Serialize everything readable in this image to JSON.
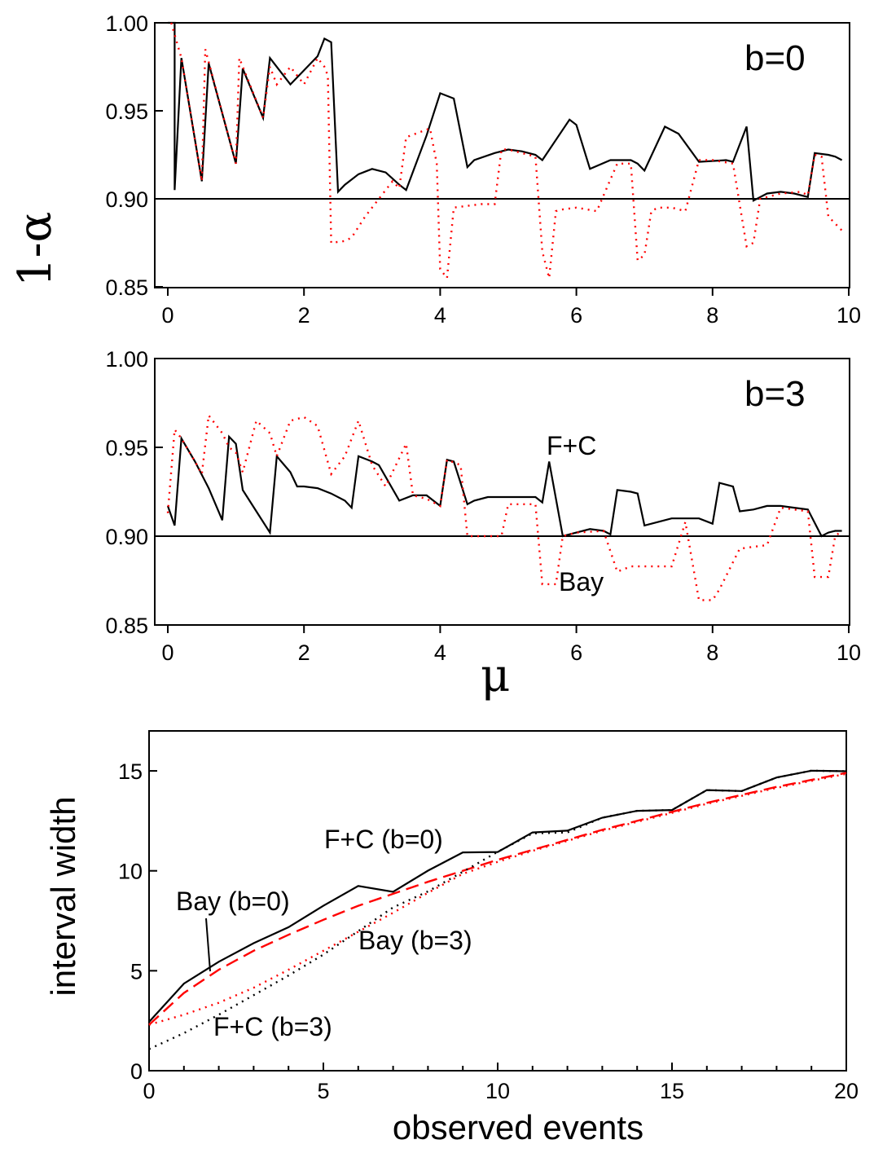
{
  "chart_data": [
    {
      "type": "line",
      "panel": "top",
      "ylabel": "1-α",
      "xlim": [
        0,
        10
      ],
      "ylim": [
        0.85,
        1.0
      ],
      "xticks": [
        0,
        2,
        4,
        6,
        8,
        10
      ],
      "yticks": [
        0.85,
        0.9,
        0.95,
        1.0
      ],
      "xtick_labels": [
        "0",
        "2",
        "4",
        "6",
        "8",
        "10"
      ],
      "ytick_labels": [
        "0.85",
        "0.90",
        "0.95",
        "1.00"
      ],
      "annotations": [
        "b=0"
      ],
      "reference_line": 0.9,
      "grid": false,
      "series": [
        {
          "color": "#000000",
          "style": "solid",
          "x": [
            0,
            0.1,
            0.1,
            0.2,
            0.5,
            0.5,
            0.6,
            1.0,
            1.0,
            1.1,
            1.4,
            1.4,
            1.5,
            1.8,
            1.8,
            2.2,
            2.2,
            2.3,
            2.4,
            2.5,
            2.6,
            2.8,
            3.0,
            3.2,
            3.4,
            3.5,
            3.5,
            3.8,
            3.8,
            4.0,
            4.2,
            4.2,
            4.4,
            4.5,
            4.8,
            5.0,
            5.2,
            5.4,
            5.5,
            5.5,
            5.9,
            6.0,
            6.2,
            6.5,
            6.8,
            6.9,
            7.0,
            7.0,
            7.3,
            7.5,
            7.5,
            7.8,
            8.2,
            8.3,
            8.5,
            8.6,
            8.6,
            8.8,
            9.0,
            9.2,
            9.4,
            9.5,
            9.5,
            9.7,
            9.8,
            9.9
          ],
          "y": [
            1.0,
            1.0,
            0.905,
            0.98,
            0.91,
            0.91,
            0.977,
            0.92,
            0.92,
            0.974,
            0.946,
            0.946,
            0.98,
            0.965,
            0.965,
            0.981,
            0.981,
            0.991,
            0.989,
            0.904,
            0.908,
            0.914,
            0.917,
            0.915,
            0.908,
            0.905,
            0.905,
            0.936,
            0.936,
            0.96,
            0.957,
            0.957,
            0.918,
            0.922,
            0.926,
            0.928,
            0.927,
            0.925,
            0.922,
            0.922,
            0.945,
            0.942,
            0.917,
            0.922,
            0.922,
            0.92,
            0.916,
            0.916,
            0.941,
            0.937,
            0.937,
            0.921,
            0.922,
            0.921,
            0.941,
            0.899,
            0.899,
            0.903,
            0.904,
            0.903,
            0.901,
            0.926,
            0.926,
            0.925,
            0.924,
            0.922
          ]
        },
        {
          "color": "#ff0000",
          "style": "dotted",
          "x": [
            0.05,
            0.2,
            0.5,
            0.55,
            1.0,
            1.05,
            1.4,
            1.5,
            1.6,
            1.8,
            2.0,
            2.2,
            2.3,
            2.35,
            2.4,
            2.6,
            2.7,
            2.9,
            3.3,
            3.4,
            3.5,
            3.5,
            3.85,
            3.95,
            4.0,
            4.1,
            4.2,
            4.4,
            4.6,
            4.8,
            4.9,
            5.0,
            5.2,
            5.4,
            5.5,
            5.6,
            5.7,
            5.8,
            6.0,
            6.3,
            6.6,
            6.8,
            6.9,
            7.0,
            7.1,
            7.2,
            7.4,
            7.6,
            7.8,
            8.0,
            8.3,
            8.5,
            8.5,
            8.6,
            8.7,
            9.0,
            9.3,
            9.4,
            9.5,
            9.6,
            9.7,
            9.9
          ],
          "y": [
            1.0,
            0.98,
            0.91,
            0.985,
            0.92,
            0.98,
            0.946,
            0.975,
            0.965,
            0.975,
            0.965,
            0.98,
            0.975,
            0.97,
            0.875,
            0.876,
            0.878,
            0.89,
            0.91,
            0.906,
            0.935,
            0.935,
            0.94,
            0.92,
            0.86,
            0.855,
            0.895,
            0.896,
            0.897,
            0.897,
            0.928,
            0.928,
            0.926,
            0.924,
            0.87,
            0.855,
            0.893,
            0.894,
            0.895,
            0.893,
            0.92,
            0.92,
            0.865,
            0.868,
            0.893,
            0.895,
            0.895,
            0.893,
            0.922,
            0.922,
            0.92,
            0.873,
            0.873,
            0.875,
            0.9,
            0.903,
            0.904,
            0.902,
            0.925,
            0.924,
            0.89,
            0.882
          ]
        }
      ]
    },
    {
      "type": "line",
      "panel": "middle",
      "xlabel": "μ",
      "xlim": [
        0,
        10
      ],
      "ylim": [
        0.85,
        1.0
      ],
      "xticks": [
        0,
        2,
        4,
        6,
        8,
        10
      ],
      "yticks": [
        0.85,
        0.9,
        0.95,
        1.0
      ],
      "xtick_labels": [
        "0",
        "2",
        "4",
        "6",
        "8",
        "10"
      ],
      "ytick_labels": [
        "0.85",
        "0.90",
        "0.95",
        "1.00"
      ],
      "annotations": [
        "b=3",
        "F+C",
        "Bay"
      ],
      "reference_line": 0.9,
      "grid": false,
      "series": [
        {
          "color": "#000000",
          "style": "solid",
          "x": [
            0,
            0.1,
            0.2,
            0.4,
            0.6,
            0.8,
            0.9,
            1.0,
            1.1,
            1.3,
            1.5,
            1.6,
            1.8,
            1.9,
            2.0,
            2.2,
            2.4,
            2.6,
            2.7,
            2.8,
            3.0,
            3.1,
            3.4,
            3.6,
            3.8,
            4.0,
            4.1,
            4.2,
            4.4,
            4.5,
            4.7,
            5.0,
            5.2,
            5.4,
            5.5,
            5.6,
            5.8,
            6.0,
            6.2,
            6.4,
            6.5,
            6.6,
            6.8,
            6.9,
            7.0,
            7.2,
            7.4,
            7.6,
            7.8,
            8.0,
            8.1,
            8.3,
            8.4,
            8.6,
            8.8,
            9.0,
            9.2,
            9.4,
            9.6,
            9.7,
            9.8,
            9.9
          ],
          "y": [
            0.917,
            0.906,
            0.955,
            0.942,
            0.927,
            0.909,
            0.956,
            0.952,
            0.926,
            0.914,
            0.902,
            0.945,
            0.936,
            0.928,
            0.928,
            0.927,
            0.924,
            0.92,
            0.916,
            0.945,
            0.942,
            0.94,
            0.92,
            0.923,
            0.923,
            0.917,
            0.943,
            0.942,
            0.918,
            0.92,
            0.922,
            0.922,
            0.922,
            0.922,
            0.919,
            0.942,
            0.9,
            0.902,
            0.904,
            0.903,
            0.901,
            0.926,
            0.925,
            0.924,
            0.906,
            0.908,
            0.91,
            0.91,
            0.91,
            0.907,
            0.93,
            0.928,
            0.914,
            0.915,
            0.917,
            0.917,
            0.916,
            0.915,
            0.9,
            0.902,
            0.903,
            0.903
          ]
        },
        {
          "color": "#ff0000",
          "style": "dotted",
          "x": [
            0,
            0.1,
            0.2,
            0.4,
            0.5,
            0.6,
            0.8,
            0.9,
            1.0,
            1.1,
            1.3,
            1.5,
            1.6,
            1.8,
            2.0,
            2.2,
            2.4,
            2.6,
            2.8,
            3.0,
            3.2,
            3.5,
            3.6,
            3.8,
            4.0,
            4.1,
            4.3,
            4.4,
            4.5,
            4.9,
            5.0,
            5.4,
            5.5,
            5.7,
            5.8,
            6.0,
            6.4,
            6.6,
            6.8,
            7.0,
            7.2,
            7.4,
            7.6,
            7.8,
            8.0,
            8.1,
            8.4,
            8.6,
            8.8,
            9.0,
            9.4,
            9.5,
            9.7,
            9.8,
            9.9
          ],
          "y": [
            0.913,
            0.96,
            0.955,
            0.942,
            0.935,
            0.968,
            0.958,
            0.95,
            0.947,
            0.936,
            0.965,
            0.958,
            0.945,
            0.965,
            0.967,
            0.962,
            0.935,
            0.945,
            0.965,
            0.94,
            0.928,
            0.952,
            0.923,
            0.921,
            0.917,
            0.943,
            0.94,
            0.9,
            0.9,
            0.9,
            0.918,
            0.918,
            0.873,
            0.873,
            0.9,
            0.902,
            0.903,
            0.88,
            0.883,
            0.883,
            0.883,
            0.883,
            0.908,
            0.864,
            0.864,
            0.87,
            0.893,
            0.894,
            0.895,
            0.916,
            0.914,
            0.877,
            0.877,
            0.9,
            0.903
          ]
        }
      ]
    },
    {
      "type": "line",
      "panel": "bottom",
      "xlabel": "observed events",
      "ylabel": "interval width",
      "xlim": [
        0,
        20
      ],
      "ylim": [
        0,
        17
      ],
      "xticks": [
        0,
        5,
        10,
        15,
        20
      ],
      "yticks": [
        0,
        5,
        10,
        15
      ],
      "xtick_labels": [
        "0",
        "5",
        "10",
        "15",
        "20"
      ],
      "ytick_labels": [
        "0",
        "5",
        "10",
        "15"
      ],
      "annotations": [
        "F+C (b=0)",
        "Bay (b=0)",
        "Bay (b=3)",
        "F+C (b=3)"
      ],
      "grid": false,
      "series": [
        {
          "name": "F+C (b=0)",
          "color": "#000000",
          "style": "solid",
          "x": [
            0,
            1,
            2,
            3,
            4,
            5,
            6,
            7,
            8,
            9,
            10,
            11,
            12,
            13,
            14,
            15,
            16,
            17,
            18,
            19,
            20
          ],
          "y": [
            2.44,
            4.36,
            5.45,
            6.38,
            7.18,
            8.25,
            9.24,
            8.95,
            10.01,
            10.92,
            10.94,
            11.92,
            12.01,
            12.66,
            13.0,
            13.04,
            14.04,
            13.99,
            14.67,
            15.01,
            14.98
          ]
        },
        {
          "name": "Bay (b=0)",
          "color": "#ff0000",
          "style": "dashed",
          "x": [
            0,
            1,
            2,
            3,
            4,
            5,
            6,
            7,
            8,
            9,
            10,
            11,
            12,
            13,
            14,
            15,
            16,
            17,
            18,
            19,
            20
          ],
          "y": [
            2.3,
            3.89,
            5.05,
            6.0,
            6.8,
            7.55,
            8.25,
            8.85,
            9.45,
            10.0,
            10.55,
            11.05,
            11.55,
            12.05,
            12.5,
            12.95,
            13.4,
            13.8,
            14.2,
            14.55,
            14.9
          ]
        },
        {
          "name": "F+C (b=3)",
          "color": "#000000",
          "style": "dotted",
          "x": [
            0,
            1,
            2,
            3,
            4,
            5,
            6,
            7,
            8,
            9,
            10,
            11,
            12,
            13,
            14,
            15,
            16,
            17,
            18,
            19,
            20
          ],
          "y": [
            1.08,
            1.88,
            2.8,
            3.78,
            4.76,
            5.81,
            6.98,
            8.17,
            8.97,
            9.95,
            10.95,
            11.87,
            11.92,
            12.66,
            13.0,
            13.04,
            14.04,
            13.99,
            14.67,
            15.01,
            14.98
          ]
        },
        {
          "name": "Bay (b=3)",
          "color": "#ff0000",
          "style": "dotted",
          "x": [
            0,
            1,
            2,
            3,
            4,
            5,
            6,
            7,
            8,
            9,
            10,
            11,
            12,
            13,
            14,
            15,
            16,
            17,
            18,
            19,
            20
          ],
          "y": [
            2.3,
            2.8,
            3.4,
            4.15,
            5.05,
            6.0,
            6.95,
            7.9,
            8.9,
            9.85,
            10.45,
            11.0,
            11.5,
            12.0,
            12.45,
            12.9,
            13.35,
            13.75,
            14.15,
            14.5,
            14.85
          ]
        }
      ]
    }
  ]
}
